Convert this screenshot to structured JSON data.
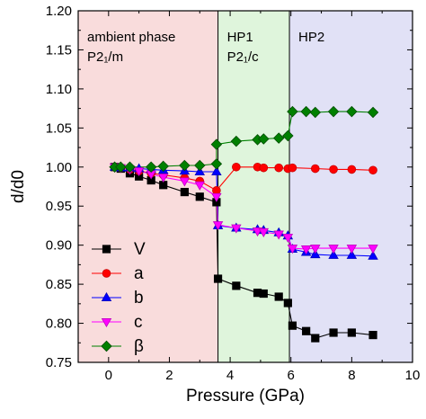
{
  "chart_data": {
    "type": "scatter",
    "xlabel": "Pressure (GPa)",
    "ylabel": "d/d0",
    "xlim": [
      -1,
      10
    ],
    "ylim": [
      0.75,
      1.2
    ],
    "xticks": [
      "0",
      "2",
      "4",
      "6",
      "8",
      "10"
    ],
    "yticks": [
      "0.75",
      "0.80",
      "0.85",
      "0.90",
      "0.95",
      "1.00",
      "1.05",
      "1.10",
      "1.15",
      "1.20"
    ],
    "grid": false,
    "legend_position": "bottom-left",
    "regions": [
      {
        "x_start": -1,
        "x_end": 3.6,
        "color": "#f9dcdc",
        "label_lines": [
          "ambient phase",
          "P2₁/m"
        ]
      },
      {
        "x_start": 3.6,
        "x_end": 5.95,
        "color": "#dff5dc",
        "label_lines": [
          "HP1",
          "P2₁/c"
        ]
      },
      {
        "x_start": 5.95,
        "x_end": 10,
        "color": "#e1e1f6",
        "label_lines": [
          "HP2"
        ]
      }
    ],
    "series": [
      {
        "name": "V",
        "marker": "square",
        "color": "#000000",
        "edge": "#000000",
        "x": [
          0.2,
          0.4,
          0.7,
          1.0,
          1.4,
          1.8,
          2.5,
          3.0,
          3.55,
          3.6,
          4.2,
          4.9,
          5.1,
          5.6,
          5.9,
          6.05,
          6.5,
          6.8,
          7.4,
          8.0,
          8.7
        ],
        "y": [
          1.0,
          0.998,
          0.992,
          0.988,
          0.983,
          0.977,
          0.968,
          0.962,
          0.955,
          0.857,
          0.848,
          0.839,
          0.838,
          0.834,
          0.826,
          0.797,
          0.79,
          0.781,
          0.788,
          0.788,
          0.785
        ]
      },
      {
        "name": "a",
        "marker": "circle",
        "color": "#ff0000",
        "edge": "#c80000",
        "x": [
          0.2,
          0.4,
          0.7,
          1.0,
          1.4,
          1.8,
          2.5,
          3.0,
          3.55,
          4.2,
          4.9,
          5.1,
          5.6,
          5.9,
          6.05,
          6.8,
          7.4,
          8.0,
          8.7
        ],
        "y": [
          1.0,
          0.999,
          0.997,
          0.995,
          0.992,
          0.99,
          0.986,
          0.982,
          0.97,
          1.0,
          1.0,
          0.999,
          0.999,
          0.998,
          0.999,
          0.998,
          0.997,
          0.997,
          0.996
        ]
      },
      {
        "name": "b",
        "marker": "triangle-up",
        "color": "#0000ff",
        "edge": "#0000c0",
        "x": [
          0.2,
          0.4,
          0.7,
          1.0,
          1.4,
          1.8,
          2.5,
          3.0,
          3.55,
          3.6,
          4.2,
          4.9,
          5.1,
          5.6,
          5.9,
          6.05,
          6.5,
          6.8,
          7.4,
          8.0,
          8.7
        ],
        "y": [
          1.0,
          0.999,
          0.999,
          0.998,
          0.997,
          0.996,
          0.995,
          0.994,
          0.994,
          0.925,
          0.922,
          0.92,
          0.919,
          0.916,
          0.912,
          0.895,
          0.891,
          0.888,
          0.887,
          0.887,
          0.886
        ]
      },
      {
        "name": "c",
        "marker": "triangle-down",
        "color": "#ff00ff",
        "edge": "#c000c0",
        "x": [
          0.2,
          0.4,
          0.7,
          1.0,
          1.4,
          1.8,
          2.5,
          3.0,
          3.55,
          3.6,
          4.2,
          4.9,
          5.1,
          5.6,
          5.9,
          6.05,
          6.5,
          6.8,
          7.4,
          8.0,
          8.7
        ],
        "y": [
          1.0,
          0.999,
          0.997,
          0.995,
          0.991,
          0.987,
          0.982,
          0.977,
          0.962,
          0.926,
          0.922,
          0.918,
          0.917,
          0.914,
          0.91,
          0.896,
          0.895,
          0.896,
          0.896,
          0.896,
          0.896
        ]
      },
      {
        "name": "β",
        "marker": "diamond",
        "color": "#008000",
        "edge": "#004d00",
        "x": [
          0.2,
          0.4,
          0.7,
          1.4,
          1.8,
          2.5,
          3.0,
          3.55,
          3.55,
          4.2,
          4.9,
          5.1,
          5.6,
          5.9,
          6.05,
          6.5,
          6.8,
          7.4,
          8.0,
          8.7
        ],
        "y": [
          1.0,
          1.0,
          1.0,
          1.0,
          1.001,
          1.002,
          1.002,
          1.004,
          1.029,
          1.033,
          1.035,
          1.036,
          1.037,
          1.04,
          1.071,
          1.071,
          1.07,
          1.071,
          1.071,
          1.07
        ]
      }
    ]
  }
}
